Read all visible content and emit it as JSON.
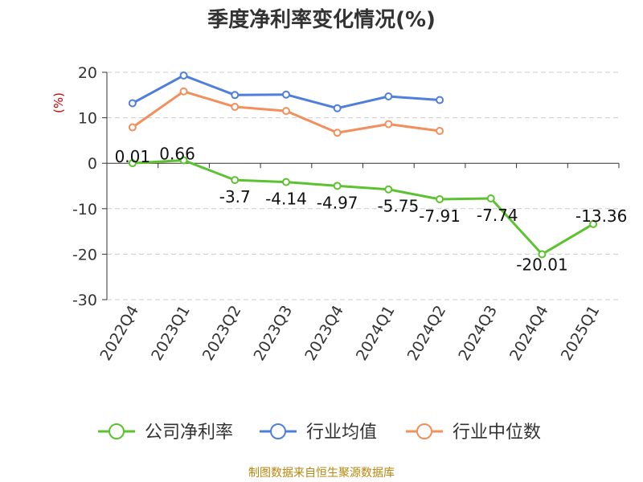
{
  "chart_data": {
    "type": "line",
    "title": "季度净利率变化情况(%)",
    "ylabel": "(%)",
    "xlabel": "",
    "ylim": [
      -30,
      20
    ],
    "yticks": [
      20,
      10,
      0,
      -10,
      -20,
      -30
    ],
    "categories": [
      "2022Q4",
      "2023Q1",
      "2023Q2",
      "2023Q3",
      "2023Q4",
      "2024Q1",
      "2024Q2",
      "2024Q3",
      "2024Q4",
      "2025Q1"
    ],
    "series": [
      {
        "name": "公司净利率",
        "color": "#5cc22f",
        "values": [
          0.01,
          0.66,
          -3.7,
          -4.14,
          -4.97,
          -5.75,
          -7.91,
          -7.74,
          -20.01,
          -13.36
        ],
        "labels": [
          "0.01",
          "0.66",
          "-3.7",
          "-4.14",
          "-4.97",
          "-5.75",
          "-7.91",
          "-7.74",
          "-20.01",
          "-13.36"
        ]
      },
      {
        "name": "行业均值",
        "color": "#4f7fdc",
        "values": [
          13.2,
          19.3,
          15.0,
          15.1,
          12.1,
          14.7,
          13.9,
          null,
          null,
          null
        ]
      },
      {
        "name": "行业中位数",
        "color": "#f28f5c",
        "values": [
          7.9,
          15.8,
          12.4,
          11.5,
          6.7,
          8.6,
          7.1,
          null,
          null,
          null
        ]
      }
    ],
    "grid": true,
    "legend": "bottom"
  },
  "source": "制图数据来自恒生聚源数据库"
}
